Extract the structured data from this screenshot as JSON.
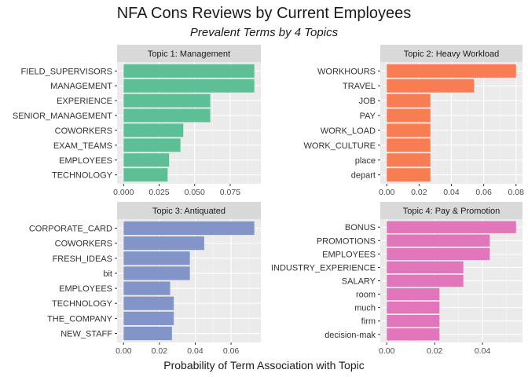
{
  "chart_data": {
    "type": "bar",
    "orientation": "horizontal",
    "title": "NFA Cons Reviews by Current Employees",
    "subtitle": "Prevalent Terms by 4 Topics",
    "xlabel": "Probability of Term Association with Topic",
    "grid": true,
    "panels": [
      {
        "facet_label": "Topic 1: Management",
        "color": "#5cbf96",
        "categories": [
          "FIELD_SUPERVISORS",
          "MANAGEMENT",
          "EXPERIENCE",
          "SENIOR_MANAGEMENT",
          "COWORKERS",
          "EXAM_TEAMS",
          "EMPLOYEES",
          "TECHNOLOGY"
        ],
        "values": [
          0.092,
          0.092,
          0.061,
          0.061,
          0.042,
          0.04,
          0.032,
          0.031
        ],
        "xlim": [
          -0.0046,
          0.0966
        ],
        "xticks": [
          0.0,
          0.025,
          0.05,
          0.075
        ],
        "xtick_labels": [
          "0.000",
          "0.025",
          "0.050",
          "0.075"
        ]
      },
      {
        "facet_label": "Topic 2: Heavy Workload",
        "color": "#f87d52",
        "categories": [
          "WORKHOURS",
          "TRAVEL",
          "JOB",
          "PAY",
          "WORK_LOAD",
          "WORK_CULTURE",
          "place",
          "depart"
        ],
        "values": [
          0.08,
          0.054,
          0.027,
          0.027,
          0.027,
          0.027,
          0.027,
          0.027
        ],
        "xlim": [
          -0.004,
          0.084
        ],
        "xticks": [
          0.0,
          0.02,
          0.04,
          0.06,
          0.08
        ],
        "xtick_labels": [
          "0.00",
          "0.02",
          "0.04",
          "0.06",
          "0.08"
        ]
      },
      {
        "facet_label": "Topic 3: Antiquated",
        "color": "#8395c8",
        "categories": [
          "CORPORATE_CARD",
          "COWORKERS",
          "FRESH_IDEAS",
          "bit",
          "EMPLOYEES",
          "TECHNOLOGY",
          "THE_COMPANY",
          "NEW_STAFF"
        ],
        "values": [
          0.073,
          0.045,
          0.037,
          0.037,
          0.026,
          0.028,
          0.028,
          0.027
        ],
        "xlim": [
          -0.00365,
          0.07665
        ],
        "xticks": [
          0.0,
          0.02,
          0.04,
          0.06
        ],
        "xtick_labels": [
          "0.00",
          "0.02",
          "0.04",
          "0.06"
        ]
      },
      {
        "facet_label": "Topic 4: Pay & Promotion",
        "color": "#e176ba",
        "categories": [
          "BONUS",
          "PROMOTIONS",
          "EMPLOYEES",
          "INDUSTRY_EXPERIENCE",
          "SALARY",
          "room",
          "much",
          "firm",
          "decision-mak"
        ],
        "values": [
          0.054,
          0.043,
          0.043,
          0.032,
          0.032,
          0.022,
          0.022,
          0.022,
          0.022
        ],
        "xlim": [
          -0.0027,
          0.0567
        ],
        "xticks": [
          0.0,
          0.02,
          0.04
        ],
        "xtick_labels": [
          "0.00",
          "0.02",
          "0.04"
        ]
      }
    ]
  }
}
